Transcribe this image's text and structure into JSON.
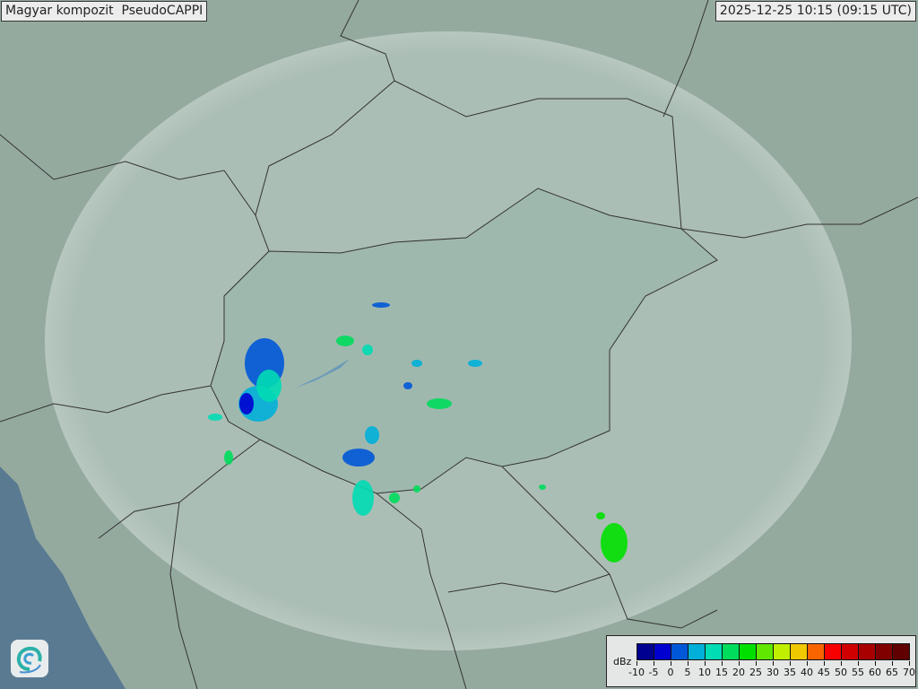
{
  "title": "Magyar kompozit  PseudoCAPPI",
  "timestamp": "2025-12-25 10:15 (09:15 UTC)",
  "logo_icon": "swirl-logo-icon",
  "legend": {
    "unit": "dBz",
    "ticks": [
      "-10",
      "-5",
      "0",
      "5",
      "10",
      "15",
      "20",
      "25",
      "30",
      "35",
      "40",
      "45",
      "50",
      "55",
      "60",
      "65",
      "70"
    ],
    "colors": [
      "#000090",
      "#0000d0",
      "#0058d8",
      "#00b0d8",
      "#00dcb4",
      "#00dc5c",
      "#00e000",
      "#60e800",
      "#c0f000",
      "#f0c800",
      "#f86400",
      "#f80000",
      "#d00000",
      "#a80000",
      "#800000",
      "#600000"
    ]
  },
  "colors": {
    "sea": "#5a7a92",
    "land": "#9bb0a5",
    "coverage": "#c8d8d2",
    "border": "#333333"
  }
}
